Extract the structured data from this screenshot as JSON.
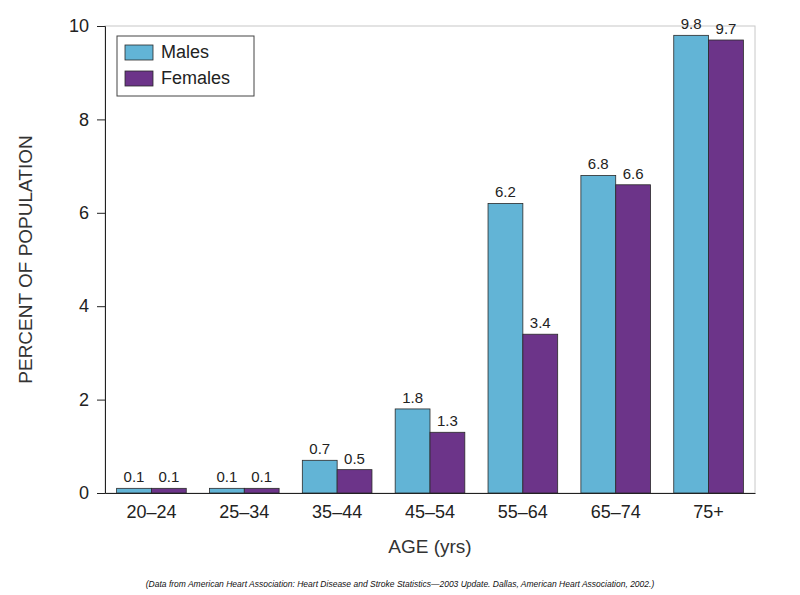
{
  "chart_data": {
    "type": "bar",
    "x_label": "AGE (yrs)",
    "y_label": "PERCENT OF POPULATION",
    "annotations": [
      "(Data from American Heart Association: Heart Disease and Stroke Statistics—2003 Update. Dallas, American Heart Association, 2002.)"
    ],
    "categories": [
      "20–24",
      "25–34",
      "35–44",
      "45–54",
      "55–64",
      "65–74",
      "75+"
    ],
    "series": [
      {
        "name": "Males",
        "color": "#62b4d6",
        "values": [
          0.1,
          0.1,
          0.7,
          1.8,
          6.2,
          6.8,
          9.8
        ]
      },
      {
        "name": "Females",
        "color": "#6c3489",
        "values": [
          0.1,
          0.1,
          0.5,
          1.3,
          3.4,
          6.6,
          9.7
        ]
      }
    ],
    "ylim": [
      0,
      10
    ],
    "yticks": [
      0,
      2,
      4,
      6,
      8,
      10
    ],
    "grid": false,
    "legend": "upper left",
    "data_labels": true
  }
}
